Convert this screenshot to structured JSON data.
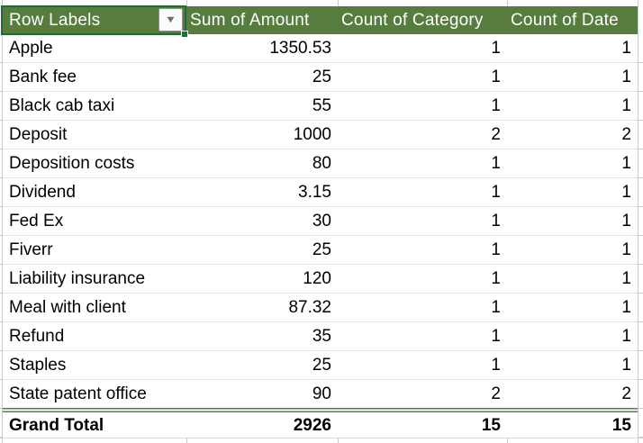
{
  "app": {
    "name": "Excel pivot table"
  },
  "icons": {
    "filter_dropdown": "▼"
  },
  "colors": {
    "header_bg": "#567D3E",
    "header_text": "#FFFFFF",
    "body_text": "#000000",
    "selection_border": "#1E6C3C",
    "fill_handle": "#1E6C3C",
    "row_divider": "#E4E9DE",
    "gridline": "#C9C9C9",
    "grand_total_rule": "#567D3E",
    "dropdown_arrow": "#6E6E6E"
  },
  "pivot": {
    "header": {
      "row_labels": "Row Labels",
      "columns": [
        "Sum of Amount",
        "Count of Category",
        "Count of Date"
      ]
    },
    "rows": [
      {
        "label": "Apple",
        "amount": "1350.53",
        "category_count": "1",
        "date_count": "1"
      },
      {
        "label": "Bank fee",
        "amount": "25",
        "category_count": "1",
        "date_count": "1"
      },
      {
        "label": "Black cab taxi",
        "amount": "55",
        "category_count": "1",
        "date_count": "1"
      },
      {
        "label": "Deposit",
        "amount": "1000",
        "category_count": "2",
        "date_count": "2"
      },
      {
        "label": "Deposition costs",
        "amount": "80",
        "category_count": "1",
        "date_count": "1"
      },
      {
        "label": "Dividend",
        "amount": "3.15",
        "category_count": "1",
        "date_count": "1"
      },
      {
        "label": "Fed Ex",
        "amount": "30",
        "category_count": "1",
        "date_count": "1"
      },
      {
        "label": "Fiverr",
        "amount": "25",
        "category_count": "1",
        "date_count": "1"
      },
      {
        "label": "Liability insurance",
        "amount": "120",
        "category_count": "1",
        "date_count": "1"
      },
      {
        "label": "Meal with client",
        "amount": "87.32",
        "category_count": "1",
        "date_count": "1"
      },
      {
        "label": "Refund",
        "amount": "35",
        "category_count": "1",
        "date_count": "1"
      },
      {
        "label": "Staples",
        "amount": "25",
        "category_count": "1",
        "date_count": "1"
      },
      {
        "label": "State patent office",
        "amount": "90",
        "category_count": "2",
        "date_count": "2"
      }
    ],
    "grand_total": {
      "label": "Grand Total",
      "amount": "2926",
      "category_count": "15",
      "date_count": "15"
    }
  }
}
